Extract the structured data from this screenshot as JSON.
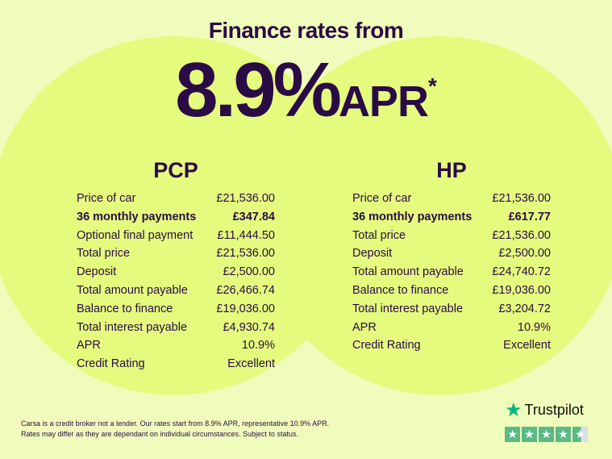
{
  "headline": "Finance rates from",
  "rate": {
    "value": "8.9%",
    "suffix": "APR",
    "asterisk": "*"
  },
  "plans": [
    {
      "title": "PCP",
      "rows": [
        {
          "label": "Price of car",
          "value": "£21,536.00",
          "bold": false
        },
        {
          "label": "36 monthly payments",
          "value": "£347.84",
          "bold": true
        },
        {
          "label": "Optional final payment",
          "value": "£11,444.50",
          "bold": false
        },
        {
          "label": "Total price",
          "value": "£21,536.00",
          "bold": false
        },
        {
          "label": "Deposit",
          "value": "£2,500.00",
          "bold": false
        },
        {
          "label": "Total amount payable",
          "value": "£26,466.74",
          "bold": false
        },
        {
          "label": "Balance to finance",
          "value": "£19,036.00",
          "bold": false
        },
        {
          "label": "Total interest payable",
          "value": "£4,930.74",
          "bold": false
        },
        {
          "label": "APR",
          "value": "10.9%",
          "bold": false
        },
        {
          "label": "Credit Rating",
          "value": "Excellent",
          "bold": false
        }
      ]
    },
    {
      "title": "HP",
      "rows": [
        {
          "label": "Price of car",
          "value": "£21,536.00",
          "bold": false
        },
        {
          "label": "36 monthly payments",
          "value": "£617.77",
          "bold": true
        },
        {
          "label": "Total price",
          "value": "£21,536.00",
          "bold": false
        },
        {
          "label": "Deposit",
          "value": "£2,500.00",
          "bold": false
        },
        {
          "label": "Total amount payable",
          "value": "£24,740.72",
          "bold": false
        },
        {
          "label": "Balance to finance",
          "value": "£19,036.00",
          "bold": false
        },
        {
          "label": "Total interest payable",
          "value": "£3,204.72",
          "bold": false
        },
        {
          "label": "APR",
          "value": "10.9%",
          "bold": false
        },
        {
          "label": "Credit Rating",
          "value": "Excellent",
          "bold": false
        }
      ]
    }
  ],
  "disclaimer": {
    "line1": "Carsa is a credit broker not a lender. Our rates start from 8.9% APR, representative 10.9% APR.",
    "line2": "Rates may differ as they are dependant on individual circumstances. Subject to status."
  },
  "trustpilot": {
    "name": "Trustpilot",
    "icon": "star-icon",
    "rating_stars": 4.5,
    "color": "#00b67a"
  },
  "colors": {
    "text": "#2b0b45",
    "background": "#f0fcbb",
    "circle": "#e4fb7e"
  }
}
